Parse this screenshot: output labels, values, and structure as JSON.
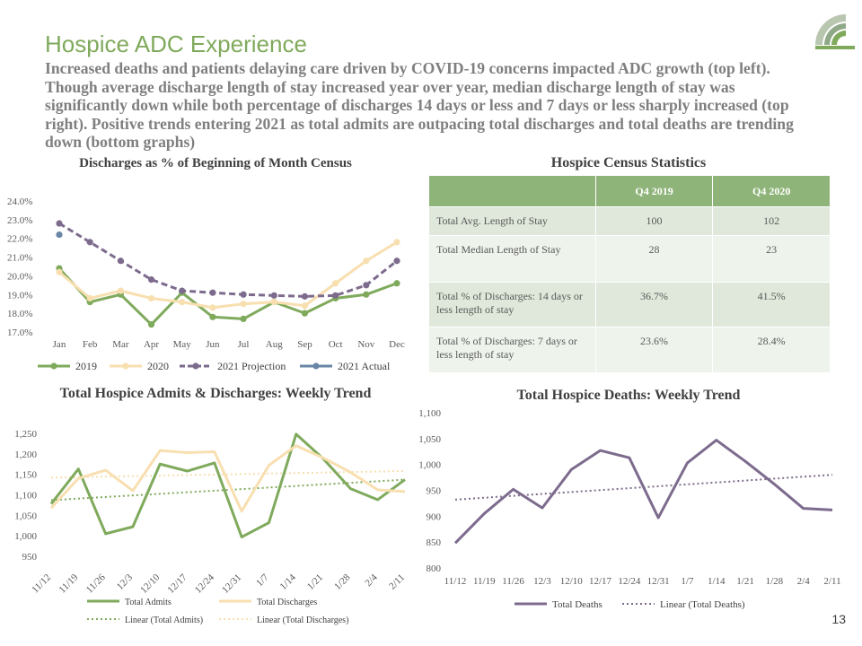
{
  "slide": {
    "title": "Hospice ADC Experience",
    "subtitle": "Increased deaths and patients delaying care driven by COVID-19 concerns impacted ADC growth (top left). Though average discharge length of stay increased year over year, median discharge length of stay was significantly down while both percentage of discharges 14 days or less and 7 days or less sharply increased (top right). Positive trends entering 2021 as total admits are outpacing total discharges and total deaths are trending down (bottom graphs)",
    "page_number": "13"
  },
  "colors": {
    "green": "#7faa5c",
    "cream": "#f8dfb0",
    "purple": "#7d6b8d",
    "blue": "#6a86a6",
    "header_green": "#8fb47a"
  },
  "census_table": {
    "title": "Hospice Census Statistics",
    "headers": [
      "",
      "Q4 2019",
      "Q4 2020"
    ],
    "rows": [
      {
        "label": "Total Avg. Length of Stay",
        "q4_2019": "100",
        "q4_2020": "102"
      },
      {
        "label": "Total Median Length of Stay",
        "q4_2019": "28",
        "q4_2020": "23"
      },
      {
        "label": "Total % of Discharges: 14 days or less length of stay",
        "q4_2019": "36.7%",
        "q4_2020": "41.5%"
      },
      {
        "label": "Total % of Discharges: 7 days or less length of stay",
        "q4_2019": "23.6%",
        "q4_2020": "28.4%"
      }
    ]
  },
  "chart_data": [
    {
      "type": "line",
      "title": "Discharges as % of Beginning of Month Census",
      "categories": [
        "Jan",
        "Feb",
        "Mar",
        "Apr",
        "May",
        "Jun",
        "Jul",
        "Aug",
        "Sep",
        "Oct",
        "Nov",
        "Dec"
      ],
      "y_ticks": [
        "24.0%",
        "23.0%",
        "22.0%",
        "21.0%",
        "20.0%",
        "19.0%",
        "18.0%",
        "17.0%"
      ],
      "ylim": [
        17,
        24
      ],
      "legend_position": "bottom",
      "series": [
        {
          "name": "2019",
          "color": "#7faa5c",
          "dash": false,
          "values": [
            20.4,
            18.6,
            19.0,
            17.4,
            19.1,
            17.8,
            17.7,
            18.6,
            18.0,
            18.8,
            19.0,
            19.6
          ]
        },
        {
          "name": "2020",
          "color": "#f8dfb0",
          "dash": false,
          "values": [
            20.2,
            18.8,
            19.2,
            18.8,
            18.6,
            18.3,
            18.5,
            18.6,
            18.4,
            19.6,
            20.8,
            21.8
          ]
        },
        {
          "name": "2021 Projection",
          "color": "#7d6b8d",
          "dash": true,
          "values": [
            22.8,
            21.8,
            20.8,
            19.8,
            19.2,
            19.1,
            19.0,
            18.95,
            18.9,
            18.95,
            19.5,
            20.8
          ]
        },
        {
          "name": "2021 Actual",
          "color": "#6a86a6",
          "dash": false,
          "values": [
            22.2,
            null,
            null,
            null,
            null,
            null,
            null,
            null,
            null,
            null,
            null,
            null
          ]
        }
      ]
    },
    {
      "type": "line",
      "title": "Total Hospice Admits & Discharges: Weekly Trend",
      "categories": [
        "11/12",
        "11/19",
        "11/26",
        "12/3",
        "12/10",
        "12/17",
        "12/24",
        "12/31",
        "1/7",
        "1/14",
        "1/21",
        "1/28",
        "2/4",
        "2/11"
      ],
      "y_ticks": [
        "1,250",
        "1,200",
        "1,150",
        "1,100",
        "1,050",
        "1,000",
        "950"
      ],
      "ylim": [
        950,
        1250
      ],
      "legend_position": "bottom",
      "series": [
        {
          "name": "Total Admits",
          "color": "#7faa5c",
          "values": [
            1078,
            1163,
            1005,
            1022,
            1175,
            1158,
            1178,
            997,
            1032,
            1248,
            1188,
            1115,
            1088,
            1137
          ]
        },
        {
          "name": "Total Discharges",
          "color": "#f8dfb0",
          "values": [
            1068,
            1140,
            1160,
            1110,
            1208,
            1203,
            1205,
            1060,
            1172,
            1220,
            1190,
            1155,
            1112,
            1108
          ]
        }
      ],
      "trendlines": [
        {
          "name": "Linear (Total Admits)",
          "color": "#7faa5c",
          "start": 1087,
          "end": 1137
        },
        {
          "name": "Linear (Total Discharges)",
          "color": "#f8dfb0",
          "start": 1142,
          "end": 1158
        }
      ]
    },
    {
      "type": "line",
      "title": "Total Hospice Deaths: Weekly Trend",
      "categories": [
        "11/12",
        "11/19",
        "11/26",
        "12/3",
        "12/10",
        "12/17",
        "12/24",
        "12/31",
        "1/7",
        "1/14",
        "1/21",
        "1/28",
        "2/4",
        "2/11"
      ],
      "y_ticks": [
        "1,100",
        "1,050",
        "1,000",
        "950",
        "900",
        "850",
        "800"
      ],
      "ylim": [
        800,
        1100
      ],
      "legend_position": "bottom",
      "series": [
        {
          "name": "Total Deaths",
          "color": "#7d6b8d",
          "values": [
            848,
            905,
            952,
            916,
            990,
            1027,
            1013,
            897,
            1003,
            1047,
            1006,
            962,
            915,
            912
          ]
        }
      ],
      "trendlines": [
        {
          "name": "Linear (Total Deaths)",
          "color": "#7d6b8d",
          "start": 932,
          "end": 980
        }
      ]
    }
  ]
}
